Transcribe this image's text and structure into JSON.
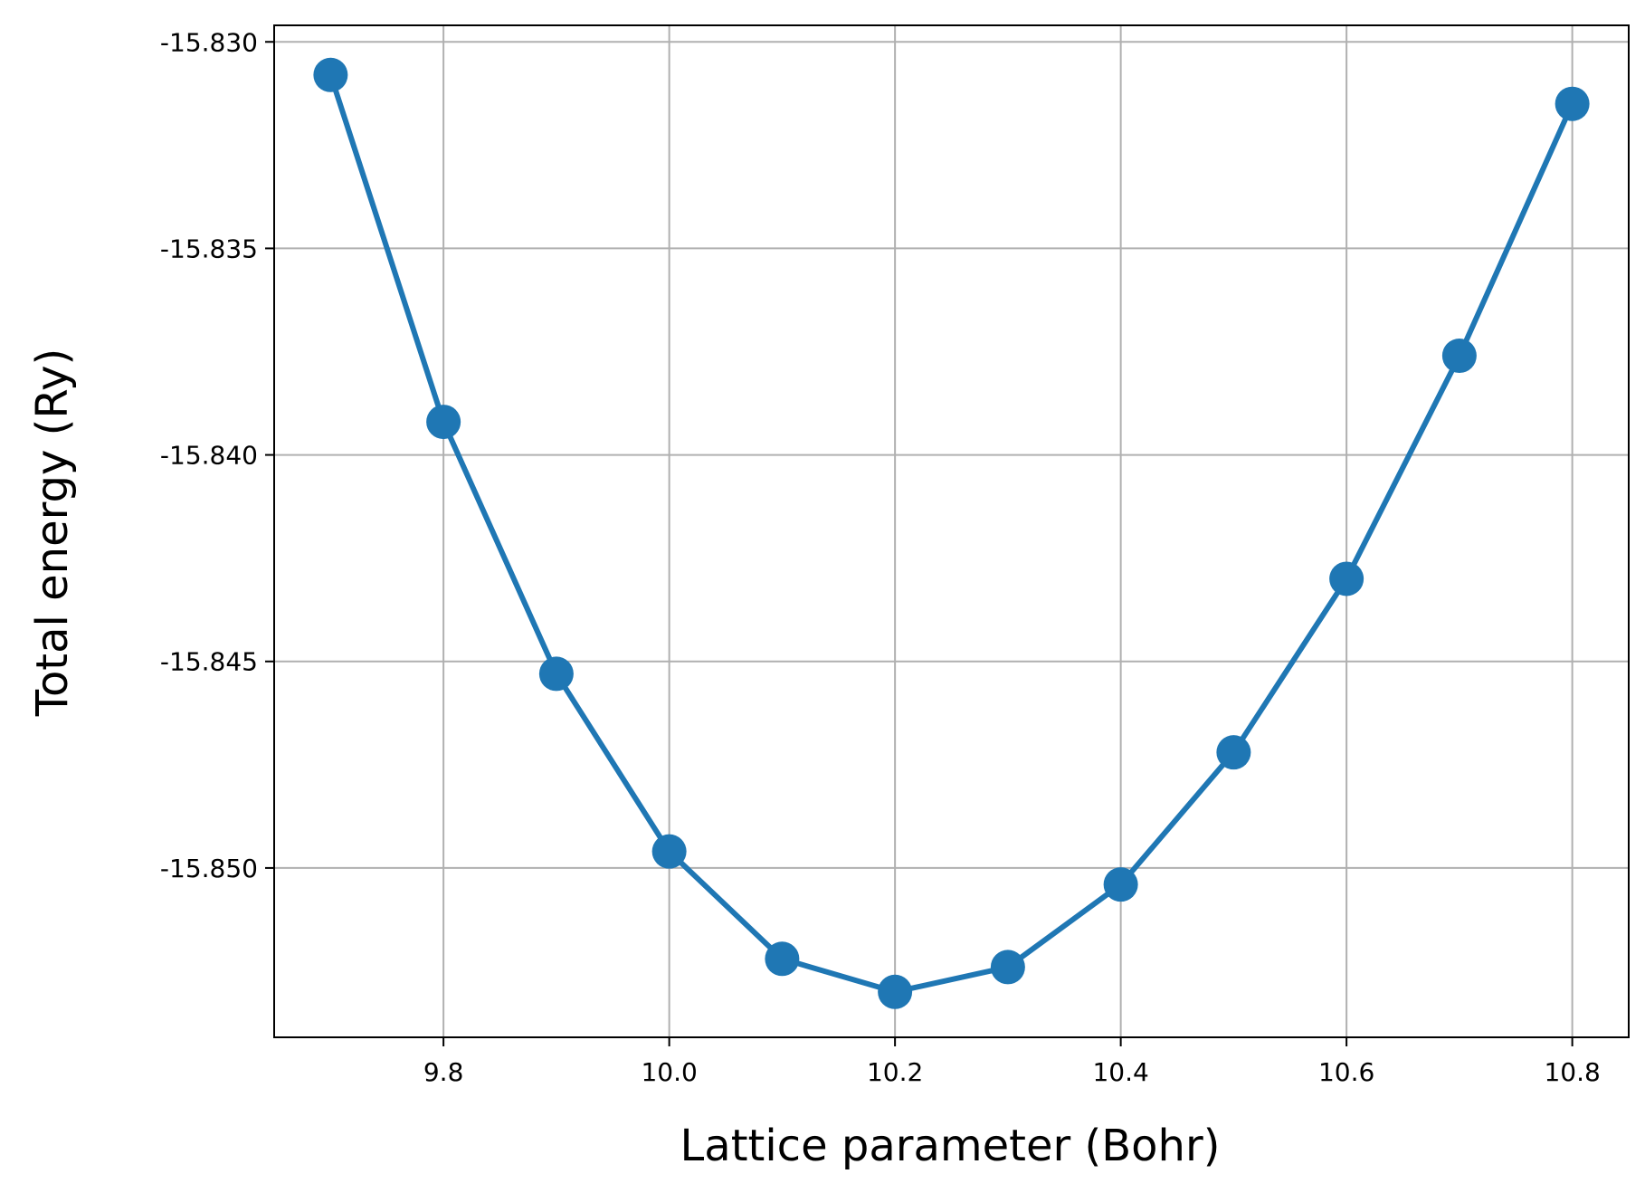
{
  "chart_data": {
    "type": "line",
    "xlabel": "Lattice parameter (Bohr)",
    "ylabel": "Total energy (Ry)",
    "xlim": [
      9.65,
      10.85
    ],
    "ylim": [
      -15.8541,
      -15.8296
    ],
    "grid": true,
    "colors": {
      "series": "#1f77b4",
      "grid": "#b0b0b0",
      "axes": "#000000"
    },
    "x_ticks": [
      {
        "value": 9.8,
        "label": "9.8"
      },
      {
        "value": 10.0,
        "label": "10.0"
      },
      {
        "value": 10.2,
        "label": "10.2"
      },
      {
        "value": 10.4,
        "label": "10.4"
      },
      {
        "value": 10.6,
        "label": "10.6"
      },
      {
        "value": 10.8,
        "label": "10.8"
      }
    ],
    "y_ticks": [
      {
        "value": -15.83,
        "label": "-15.830"
      },
      {
        "value": -15.835,
        "label": "-15.835"
      },
      {
        "value": -15.84,
        "label": "-15.840"
      },
      {
        "value": -15.845,
        "label": "-15.845"
      },
      {
        "value": -15.85,
        "label": "-15.850"
      }
    ],
    "series": [
      {
        "x": [
          9.7,
          9.8,
          9.9,
          10.0,
          10.1,
          10.2,
          10.3,
          10.4,
          10.5,
          10.6,
          10.7,
          10.8
        ],
        "values": [
          -15.8308,
          -15.8392,
          -15.8453,
          -15.8496,
          -15.8522,
          -15.853,
          -15.8524,
          -15.8504,
          -15.8472,
          -15.843,
          -15.8376,
          -15.8315
        ]
      }
    ]
  }
}
